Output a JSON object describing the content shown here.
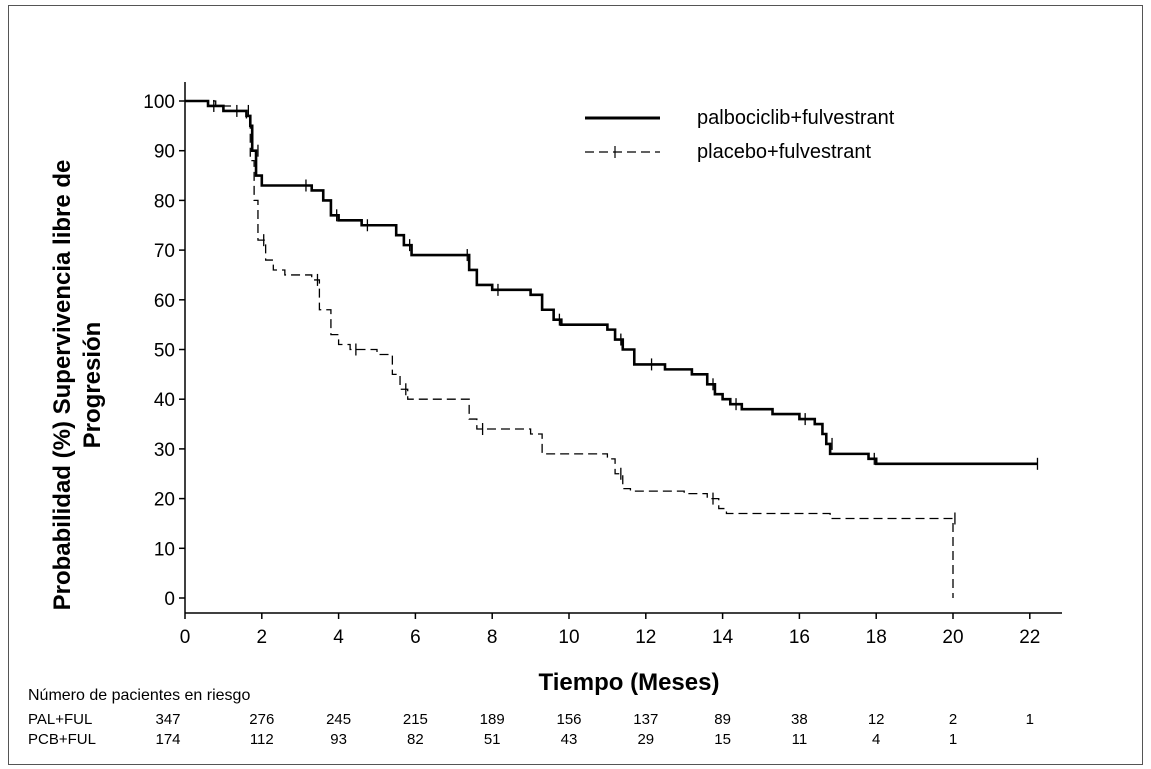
{
  "chart_data": {
    "type": "line",
    "title": "",
    "xlabel": "Tiempo (Meses)",
    "ylabel_line1": "Probabilidad (%) Supervivencia libre de",
    "ylabel_line2": "Progresión",
    "xlim": [
      0,
      23
    ],
    "ylim": [
      -3,
      104
    ],
    "xticks": [
      "0",
      "2",
      "4",
      "6",
      "8",
      "10",
      "12",
      "14",
      "16",
      "18",
      "20",
      "22"
    ],
    "yticks": [
      "0",
      "10",
      "20",
      "30",
      "40",
      "50",
      "60",
      "70",
      "80",
      "90",
      "100"
    ],
    "grid": false,
    "legend_position": "top-right",
    "series": [
      {
        "name": "palbociclib+fulvestrant",
        "style": "solid",
        "points": [
          [
            0,
            100
          ],
          [
            0.5,
            100
          ],
          [
            0.6,
            99
          ],
          [
            0.9,
            99
          ],
          [
            1,
            98
          ],
          [
            1.5,
            98
          ],
          [
            1.6,
            97
          ],
          [
            1.7,
            95
          ],
          [
            1.75,
            90
          ],
          [
            1.85,
            85
          ],
          [
            2,
            83
          ],
          [
            3,
            83
          ],
          [
            3.3,
            82
          ],
          [
            3.6,
            80
          ],
          [
            3.8,
            77
          ],
          [
            4,
            76
          ],
          [
            4.5,
            76
          ],
          [
            4.6,
            75
          ],
          [
            5.4,
            75
          ],
          [
            5.5,
            73
          ],
          [
            5.7,
            71
          ],
          [
            5.9,
            69
          ],
          [
            6,
            69
          ],
          [
            7.2,
            69
          ],
          [
            7.4,
            66
          ],
          [
            7.6,
            63
          ],
          [
            8,
            62
          ],
          [
            9,
            61
          ],
          [
            9.3,
            58
          ],
          [
            9.6,
            56
          ],
          [
            9.8,
            55
          ],
          [
            11,
            54
          ],
          [
            11.2,
            52
          ],
          [
            11.4,
            50
          ],
          [
            11.7,
            47
          ],
          [
            12,
            47
          ],
          [
            12.5,
            46
          ],
          [
            13.2,
            45
          ],
          [
            13.6,
            43
          ],
          [
            13.8,
            41
          ],
          [
            14,
            40
          ],
          [
            14.2,
            39
          ],
          [
            14.5,
            38
          ],
          [
            15.3,
            37
          ],
          [
            16,
            36
          ],
          [
            16.4,
            35
          ],
          [
            16.6,
            33
          ],
          [
            16.7,
            31
          ],
          [
            16.8,
            29
          ],
          [
            17.6,
            29
          ],
          [
            17.8,
            28
          ],
          [
            18,
            27
          ],
          [
            22.2,
            27
          ]
        ]
      },
      {
        "name": "placebo+fulvestrant",
        "style": "dashed",
        "points": [
          [
            0,
            100
          ],
          [
            0.8,
            99
          ],
          [
            1.2,
            98
          ],
          [
            1.6,
            96
          ],
          [
            1.7,
            88
          ],
          [
            1.8,
            80
          ],
          [
            1.9,
            72
          ],
          [
            2.1,
            68
          ],
          [
            2.3,
            66
          ],
          [
            2.6,
            65
          ],
          [
            3.3,
            64
          ],
          [
            3.5,
            58
          ],
          [
            3.8,
            53
          ],
          [
            4,
            51
          ],
          [
            4.3,
            50
          ],
          [
            5,
            49
          ],
          [
            5.3,
            49
          ],
          [
            5.4,
            45
          ],
          [
            5.6,
            42
          ],
          [
            5.8,
            40
          ],
          [
            7.2,
            40
          ],
          [
            7.4,
            36
          ],
          [
            7.6,
            34
          ],
          [
            9,
            33
          ],
          [
            9.3,
            29
          ],
          [
            11,
            28
          ],
          [
            11.2,
            25
          ],
          [
            11.4,
            22
          ],
          [
            11.6,
            21.5
          ],
          [
            13,
            21
          ],
          [
            13.6,
            20
          ],
          [
            13.9,
            18
          ],
          [
            14.1,
            17
          ],
          [
            16.8,
            16
          ],
          [
            19.9,
            16
          ],
          [
            20,
            16
          ],
          [
            20,
            0
          ]
        ]
      }
    ],
    "risk_table": {
      "title": "Número de pacientes en riesgo",
      "times": [
        0,
        2,
        4,
        6,
        8,
        10,
        12,
        14,
        16,
        18,
        20,
        22
      ],
      "rows": [
        {
          "label": "PAL+FUL",
          "values": [
            "347",
            "276",
            "245",
            "215",
            "189",
            "156",
            "137",
            "89",
            "38",
            "12",
            "2",
            "1"
          ]
        },
        {
          "label": "PCB+FUL",
          "values": [
            "174",
            "112",
            "93",
            "82",
            "51",
            "43",
            "29",
            "15",
            "11",
            "4",
            "1",
            ""
          ]
        }
      ]
    }
  }
}
